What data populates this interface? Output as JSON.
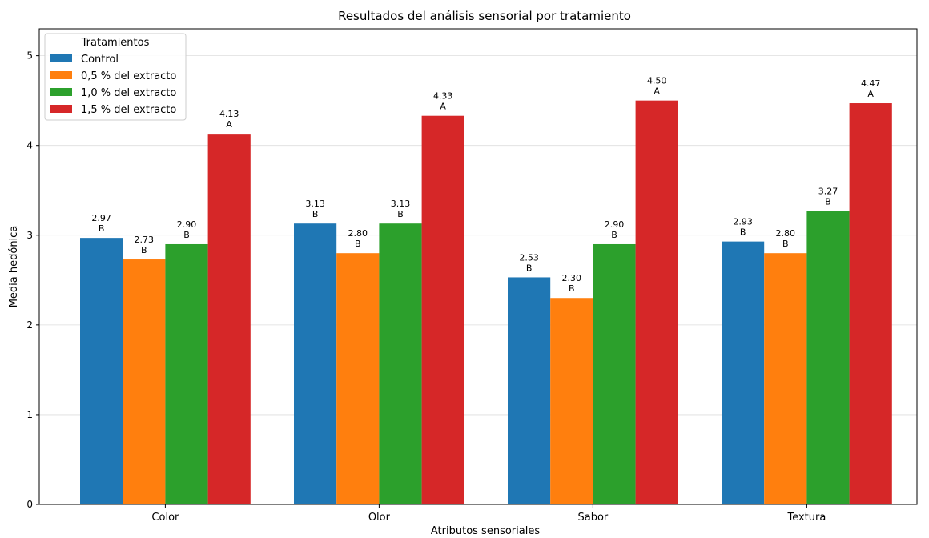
{
  "chart_data": {
    "type": "bar",
    "title": "Resultados del análisis sensorial por tratamiento",
    "xlabel": "Atributos sensoriales",
    "ylabel": "Media hedónica",
    "ylim": [
      0,
      5.3
    ],
    "yticks": [
      0,
      1,
      2,
      3,
      4,
      5
    ],
    "grid": "y",
    "legend_title": "Tratamientos",
    "legend_position": "top-left",
    "categories": [
      "Color",
      "Olor",
      "Sabor",
      "Textura"
    ],
    "series": [
      {
        "name": "Control",
        "color": "#1f77b4",
        "values": [
          2.97,
          3.13,
          2.53,
          2.93
        ],
        "groups": [
          "B",
          "B",
          "B",
          "B"
        ]
      },
      {
        "name": "0,5 % del extracto",
        "color": "#ff7f0e",
        "values": [
          2.73,
          2.8,
          2.3,
          2.8
        ],
        "groups": [
          "B",
          "B",
          "B",
          "B"
        ]
      },
      {
        "name": "1,0 % del extracto",
        "color": "#2ca02c",
        "values": [
          2.9,
          3.13,
          2.9,
          3.27
        ],
        "groups": [
          "B",
          "B",
          "B",
          "B"
        ]
      },
      {
        "name": "1,5 % del extracto",
        "color": "#d62728",
        "values": [
          4.13,
          4.33,
          4.5,
          4.47
        ],
        "groups": [
          "A",
          "A",
          "A",
          "A"
        ]
      }
    ]
  }
}
